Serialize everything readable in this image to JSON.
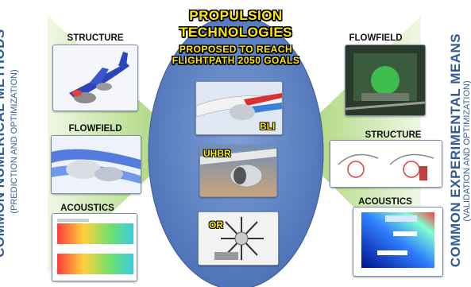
{
  "left_title": {
    "main": "COMMON NUMERICAL METHODS",
    "sub": "(PREDICTION AND OPTIMIZATION)"
  },
  "right_title": {
    "main": "COMMON EXPERIMENTAL MEANS",
    "sub": "(VALIDATION AND OPTIMIZATION)"
  },
  "center": {
    "title_line1": "PROPULSION",
    "title_line2": "TECHNOLOGIES",
    "subtitle_line1": "PROPOSED TO REACH",
    "subtitle_line2": "FLIGHTPATH 2050 GOALS",
    "technologies": [
      {
        "label": "BLI"
      },
      {
        "label": "UHBR"
      },
      {
        "label": "OR"
      }
    ]
  },
  "left_panels": [
    {
      "label": "STRUCTURE"
    },
    {
      "label": "FLOWFIELD"
    },
    {
      "label": "ACOUSTICS"
    }
  ],
  "right_panels": [
    {
      "label": "FLOWFIELD"
    },
    {
      "label": "STRUCTURE"
    },
    {
      "label": "ACOUSTICS"
    }
  ],
  "colors": {
    "ellipse": "#5b7fc0",
    "arrow_green": "#8cc84b",
    "title_yellow": "#ffe600",
    "side_title_blue": "#2f5a96"
  }
}
